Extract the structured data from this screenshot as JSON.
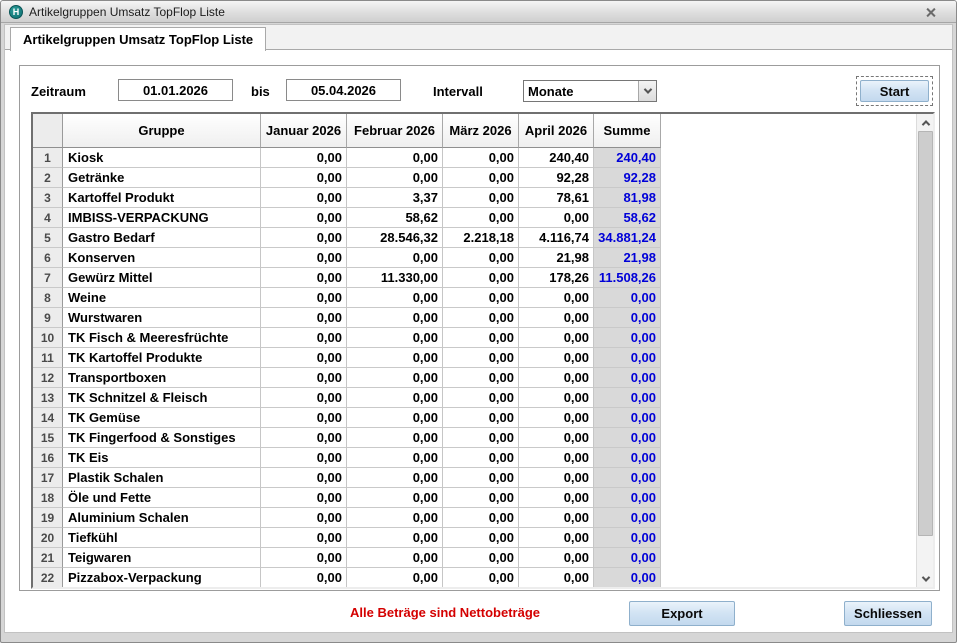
{
  "window": {
    "title": "Artikelgruppen Umsatz TopFlop Liste",
    "icon_letter": "H"
  },
  "tab": {
    "label": "Artikelgruppen Umsatz TopFlop Liste"
  },
  "filters": {
    "zeitraum_label": "Zeitraum",
    "date_from": "01.01.2026",
    "bis_label": "bis",
    "date_to": "05.04.2026",
    "intervall_label": "Intervall",
    "intervall_value": "Monate",
    "start_label": "Start"
  },
  "table": {
    "columns": [
      "Gruppe",
      "Januar 2026",
      "Februar 2026",
      "März 2026",
      "April 2026",
      "Summe"
    ],
    "rows": [
      {
        "nr": "1",
        "gruppe": "Kiosk",
        "values": [
          "0,00",
          "0,00",
          "0,00",
          "240,40"
        ],
        "summe": "240,40"
      },
      {
        "nr": "2",
        "gruppe": "Getränke",
        "values": [
          "0,00",
          "0,00",
          "0,00",
          "92,28"
        ],
        "summe": "92,28"
      },
      {
        "nr": "3",
        "gruppe": "Kartoffel Produkt",
        "values": [
          "0,00",
          "3,37",
          "0,00",
          "78,61"
        ],
        "summe": "81,98"
      },
      {
        "nr": "4",
        "gruppe": "IMBISS-VERPACKUNG",
        "values": [
          "0,00",
          "58,62",
          "0,00",
          "0,00"
        ],
        "summe": "58,62"
      },
      {
        "nr": "5",
        "gruppe": "Gastro Bedarf",
        "values": [
          "0,00",
          "28.546,32",
          "2.218,18",
          "4.116,74"
        ],
        "summe": "34.881,24"
      },
      {
        "nr": "6",
        "gruppe": "Konserven",
        "values": [
          "0,00",
          "0,00",
          "0,00",
          "21,98"
        ],
        "summe": "21,98"
      },
      {
        "nr": "7",
        "gruppe": "Gewürz Mittel",
        "values": [
          "0,00",
          "11.330,00",
          "0,00",
          "178,26"
        ],
        "summe": "11.508,26"
      },
      {
        "nr": "8",
        "gruppe": "Weine",
        "values": [
          "0,00",
          "0,00",
          "0,00",
          "0,00"
        ],
        "summe": "0,00"
      },
      {
        "nr": "9",
        "gruppe": "Wurstwaren",
        "values": [
          "0,00",
          "0,00",
          "0,00",
          "0,00"
        ],
        "summe": "0,00"
      },
      {
        "nr": "10",
        "gruppe": "TK Fisch & Meeresfrüchte",
        "values": [
          "0,00",
          "0,00",
          "0,00",
          "0,00"
        ],
        "summe": "0,00"
      },
      {
        "nr": "11",
        "gruppe": "TK Kartoffel Produkte",
        "values": [
          "0,00",
          "0,00",
          "0,00",
          "0,00"
        ],
        "summe": "0,00"
      },
      {
        "nr": "12",
        "gruppe": "Transportboxen",
        "values": [
          "0,00",
          "0,00",
          "0,00",
          "0,00"
        ],
        "summe": "0,00"
      },
      {
        "nr": "13",
        "gruppe": "TK Schnitzel & Fleisch",
        "values": [
          "0,00",
          "0,00",
          "0,00",
          "0,00"
        ],
        "summe": "0,00"
      },
      {
        "nr": "14",
        "gruppe": "TK Gemüse",
        "values": [
          "0,00",
          "0,00",
          "0,00",
          "0,00"
        ],
        "summe": "0,00"
      },
      {
        "nr": "15",
        "gruppe": "TK Fingerfood & Sonstiges",
        "values": [
          "0,00",
          "0,00",
          "0,00",
          "0,00"
        ],
        "summe": "0,00"
      },
      {
        "nr": "16",
        "gruppe": "TK Eis",
        "values": [
          "0,00",
          "0,00",
          "0,00",
          "0,00"
        ],
        "summe": "0,00"
      },
      {
        "nr": "17",
        "gruppe": "Plastik Schalen",
        "values": [
          "0,00",
          "0,00",
          "0,00",
          "0,00"
        ],
        "summe": "0,00"
      },
      {
        "nr": "18",
        "gruppe": "Öle und Fette",
        "values": [
          "0,00",
          "0,00",
          "0,00",
          "0,00"
        ],
        "summe": "0,00"
      },
      {
        "nr": "19",
        "gruppe": "Aluminium Schalen",
        "values": [
          "0,00",
          "0,00",
          "0,00",
          "0,00"
        ],
        "summe": "0,00"
      },
      {
        "nr": "20",
        "gruppe": "Tiefkühl",
        "values": [
          "0,00",
          "0,00",
          "0,00",
          "0,00"
        ],
        "summe": "0,00"
      },
      {
        "nr": "21",
        "gruppe": "Teigwaren",
        "values": [
          "0,00",
          "0,00",
          "0,00",
          "0,00"
        ],
        "summe": "0,00"
      },
      {
        "nr": "22",
        "gruppe": "Pizzabox-Verpackung",
        "values": [
          "0,00",
          "0,00",
          "0,00",
          "0,00"
        ],
        "summe": "0,00"
      }
    ]
  },
  "footer": {
    "note": "Alle Beträge sind Nettobeträge",
    "export_label": "Export",
    "close_label": "Schliessen"
  },
  "colors": {
    "summe_text": "#0000d8",
    "note_text": "#d40000",
    "button_face": "#d3e4f4",
    "icon_teal": "#0d6e70"
  }
}
